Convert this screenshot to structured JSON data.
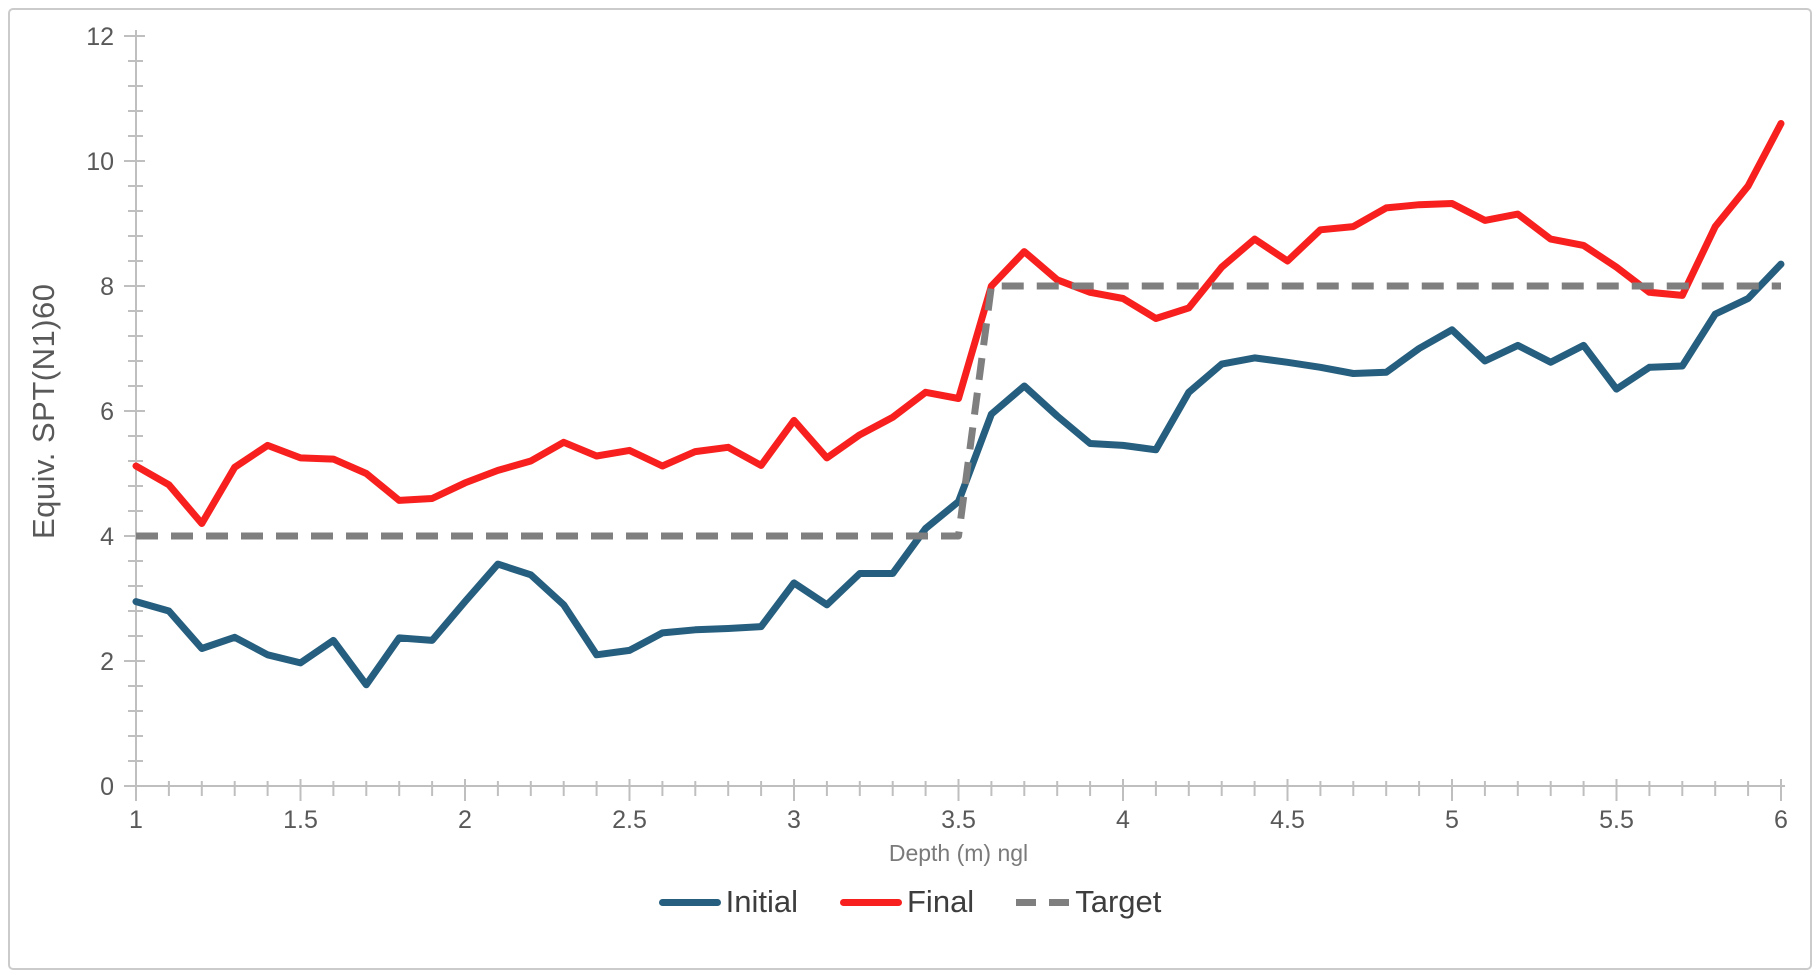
{
  "frame": {
    "border_color": "#cbcbcb",
    "background": "#ffffff"
  },
  "axis_style": {
    "line_color": "#bfbfbf",
    "tick_color": "#bfbfbf",
    "tick_label_color": "#595959",
    "x_title_color": "#7a7a7a",
    "y_title_color": "#595959",
    "tick_label_font_px": 25
  },
  "chart_data": {
    "type": "line",
    "title": "",
    "xlabel": "Depth (m) ngl",
    "ylabel": "Equiv. SPT(N1)60",
    "xlim": [
      1,
      6
    ],
    "ylim": [
      0,
      12
    ],
    "x_major_tick": 0.5,
    "x_minor_tick": 0.1,
    "y_major_tick": 2,
    "y_minor_tick": 0.4,
    "grid": false,
    "legend_position": "bottom-center",
    "x_tick_labels": [
      "1",
      "1.5",
      "2",
      "2.5",
      "3",
      "3.5",
      "4",
      "4.5",
      "5",
      "5.5",
      "6"
    ],
    "y_tick_labels": [
      "0",
      "2",
      "4",
      "6",
      "8",
      "10",
      "12"
    ],
    "x": [
      1.0,
      1.1,
      1.2,
      1.3,
      1.4,
      1.5,
      1.6,
      1.7,
      1.8,
      1.9,
      2.0,
      2.1,
      2.2,
      2.3,
      2.4,
      2.5,
      2.6,
      2.7,
      2.8,
      2.9,
      3.0,
      3.1,
      3.2,
      3.3,
      3.4,
      3.5,
      3.6,
      3.7,
      3.8,
      3.9,
      4.0,
      4.1,
      4.2,
      4.3,
      4.4,
      4.5,
      4.6,
      4.7,
      4.8,
      4.9,
      5.0,
      5.1,
      5.2,
      5.3,
      5.4,
      5.5,
      5.6,
      5.7,
      5.8,
      5.9,
      6.0
    ],
    "series": [
      {
        "name": "Initial",
        "color": "#255e7e",
        "style": "solid",
        "values": [
          2.95,
          2.8,
          2.2,
          2.38,
          2.1,
          1.97,
          2.33,
          1.62,
          2.37,
          2.33,
          2.95,
          3.55,
          3.38,
          2.9,
          2.1,
          2.17,
          2.45,
          2.5,
          2.52,
          2.55,
          3.25,
          2.9,
          3.4,
          3.4,
          4.12,
          4.55,
          5.95,
          6.4,
          5.92,
          5.48,
          5.45,
          5.38,
          6.3,
          6.75,
          6.85,
          6.78,
          6.7,
          6.6,
          6.62,
          7.0,
          7.3,
          6.8,
          7.05,
          6.78,
          7.05,
          6.35,
          6.7,
          6.72,
          7.55,
          7.8,
          8.35
        ]
      },
      {
        "name": "Final",
        "color": "#f8201e",
        "style": "solid",
        "values": [
          5.12,
          4.82,
          4.2,
          5.1,
          5.45,
          5.25,
          5.23,
          5.0,
          4.57,
          4.6,
          4.85,
          5.05,
          5.2,
          5.5,
          5.28,
          5.37,
          5.12,
          5.35,
          5.42,
          5.13,
          5.85,
          5.25,
          5.62,
          5.9,
          6.3,
          6.2,
          8.0,
          8.55,
          8.1,
          7.9,
          7.8,
          7.48,
          7.65,
          8.3,
          8.75,
          8.4,
          8.9,
          8.95,
          9.25,
          9.3,
          9.32,
          9.05,
          9.15,
          8.75,
          8.65,
          8.3,
          7.9,
          7.85,
          8.95,
          9.6,
          10.6
        ]
      },
      {
        "name": "Target",
        "color": "#7f7f7f",
        "style": "dashed",
        "values": [
          4,
          4,
          4,
          4,
          4,
          4,
          4,
          4,
          4,
          4,
          4,
          4,
          4,
          4,
          4,
          4,
          4,
          4,
          4,
          4,
          4,
          4,
          4,
          4,
          4,
          4,
          8,
          8,
          8,
          8,
          8,
          8,
          8,
          8,
          8,
          8,
          8,
          8,
          8,
          8,
          8,
          8,
          8,
          8,
          8,
          8,
          8,
          8,
          8,
          8,
          8
        ]
      }
    ]
  }
}
